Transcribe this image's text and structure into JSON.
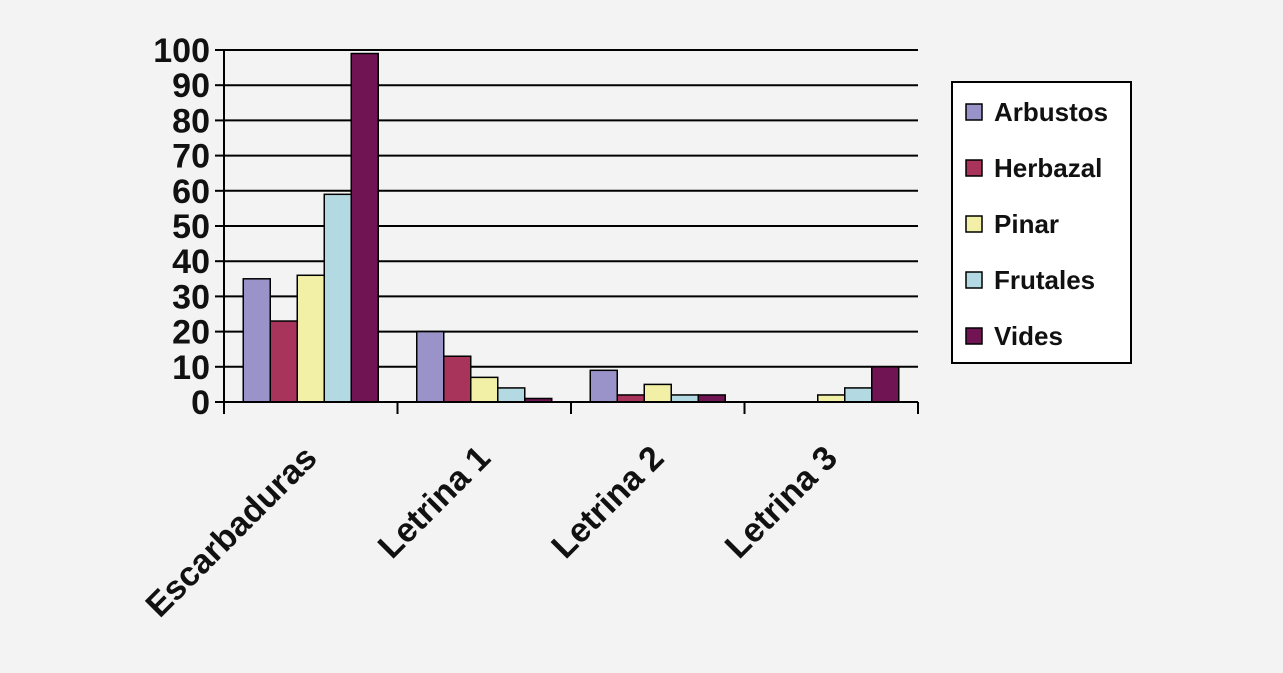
{
  "chart_data": {
    "type": "bar",
    "title": "",
    "xlabel": "",
    "ylabel": "",
    "ylim": [
      0,
      100
    ],
    "yticks": [
      0,
      10,
      20,
      30,
      40,
      50,
      60,
      70,
      80,
      90,
      100
    ],
    "grid": true,
    "legend_position": "right",
    "categories": [
      "Escarbaduras",
      "Letrina 1",
      "Letrina 2",
      "Letrina 3"
    ],
    "series": [
      {
        "name": "Arbustos",
        "color": "#9a93c9",
        "values": [
          35,
          20,
          9,
          0
        ]
      },
      {
        "name": "Herbazal",
        "color": "#a8335b",
        "values": [
          23,
          13,
          2,
          0
        ]
      },
      {
        "name": "Pinar",
        "color": "#f2f0a6",
        "values": [
          36,
          7,
          5,
          2
        ]
      },
      {
        "name": "Frutales",
        "color": "#b3d9e3",
        "values": [
          59,
          4,
          2,
          4
        ]
      },
      {
        "name": "Vides",
        "color": "#701453",
        "values": [
          99,
          1,
          2,
          10
        ]
      }
    ]
  }
}
